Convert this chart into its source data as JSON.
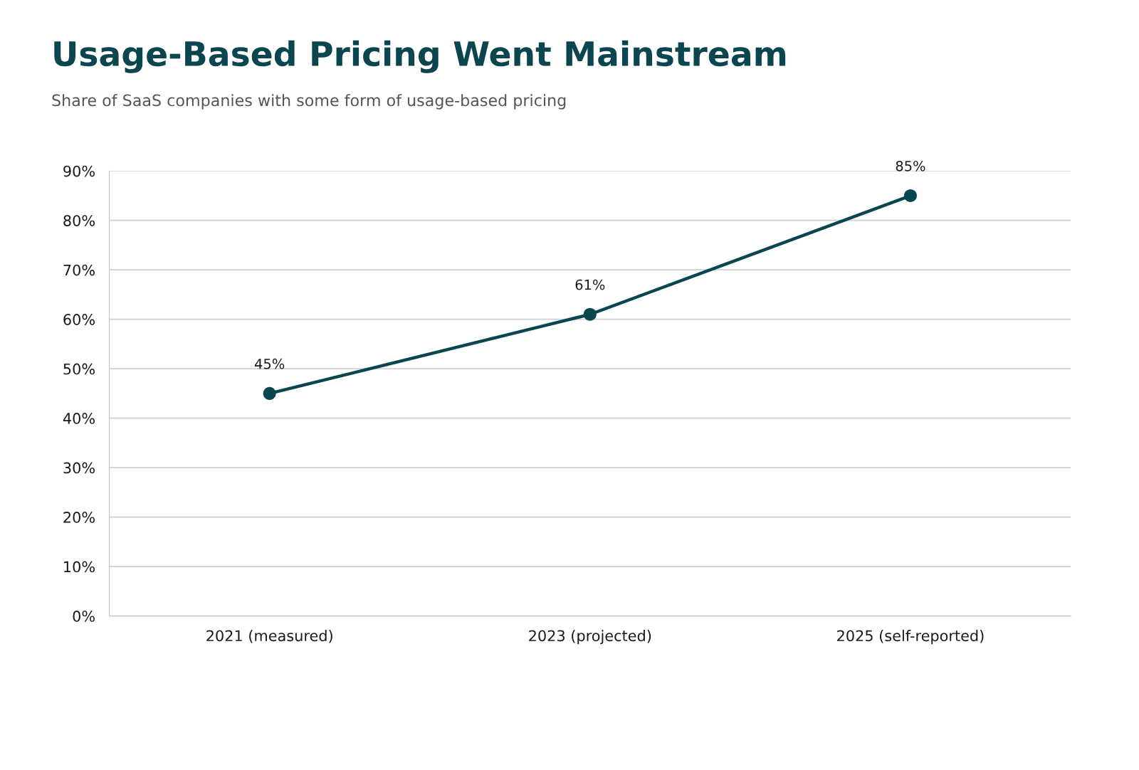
{
  "chart_data": {
    "type": "line",
    "title": "Usage-Based Pricing Went Mainstream",
    "subtitle": "Share of SaaS companies with some form of usage-based pricing",
    "categories": [
      "2021 (measured)",
      "2023 (projected)",
      "2025 (self-reported)"
    ],
    "series": [
      {
        "color": "#0b4650",
        "values": [
          45,
          61,
          85
        ],
        "value_labels": [
          "45%",
          "61%",
          "85%"
        ]
      }
    ],
    "ylim": [
      0,
      90
    ],
    "yticks": [
      {
        "value": 0,
        "label": "0%"
      },
      {
        "value": 10,
        "label": "10%"
      },
      {
        "value": 20,
        "label": "20%"
      },
      {
        "value": 30,
        "label": "30%"
      },
      {
        "value": 40,
        "label": "40%"
      },
      {
        "value": 50,
        "label": "50%"
      },
      {
        "value": 60,
        "label": "60%"
      },
      {
        "value": 70,
        "label": "70%"
      },
      {
        "value": 80,
        "label": "80%"
      },
      {
        "value": 90,
        "label": "90%"
      }
    ],
    "grid": "y",
    "marker": "circle",
    "line_style": "solid",
    "legend": false
  }
}
